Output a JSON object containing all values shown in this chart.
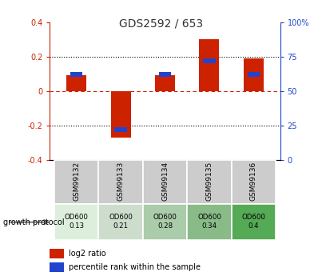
{
  "title": "GDS2592 / 653",
  "samples": [
    "GSM99132",
    "GSM99133",
    "GSM99134",
    "GSM99135",
    "GSM99136"
  ],
  "log2_ratio": [
    0.09,
    -0.27,
    0.09,
    0.3,
    0.19
  ],
  "percentile_rank": [
    62,
    22,
    62,
    72,
    62
  ],
  "bar_color_red": "#cc2200",
  "bar_color_blue": "#2244cc",
  "ylim_left": [
    -0.4,
    0.4
  ],
  "ylim_right": [
    0,
    100
  ],
  "yticks_left": [
    -0.4,
    -0.2,
    0.0,
    0.2,
    0.4
  ],
  "yticks_right": [
    0,
    25,
    50,
    75,
    100
  ],
  "ytick_labels_right": [
    "0",
    "25",
    "50",
    "75",
    "100%"
  ],
  "hlines_dotted": [
    -0.2,
    0.2
  ],
  "growth_protocol_label": "growth protocol",
  "protocol_values": [
    "OD600\n0.13",
    "OD600\n0.21",
    "OD600\n0.28",
    "OD600\n0.34",
    "OD600\n0.4"
  ],
  "protocol_colors": [
    "#ddeedd",
    "#ccddcc",
    "#aaccaa",
    "#88bb88",
    "#55aa55"
  ],
  "sample_bg_color": "#cccccc",
  "title_color": "#333333",
  "left_axis_color": "#cc2200",
  "right_axis_color": "#2244cc",
  "bar_width": 0.45,
  "blue_bar_width": 0.28,
  "blue_bar_height": 0.025
}
